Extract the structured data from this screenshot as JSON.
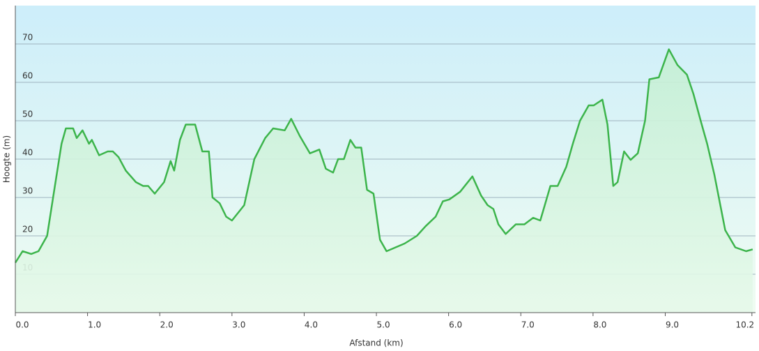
{
  "chart_data": {
    "type": "area",
    "xlabel": "Afstand  (km)",
    "ylabel": "Hoogte (m)",
    "x": [
      0,
      0.1,
      0.22,
      0.32,
      0.44,
      0.54,
      0.64,
      0.7,
      0.8,
      0.85,
      0.93,
      1.02,
      1.06,
      1.16,
      1.28,
      1.35,
      1.43,
      1.53,
      1.67,
      1.77,
      1.84,
      1.93,
      2.06,
      2.15,
      2.2,
      2.28,
      2.36,
      2.49,
      2.59,
      2.68,
      2.73,
      2.83,
      2.92,
      3.0,
      3.17,
      3.31,
      3.46,
      3.57,
      3.73,
      3.82,
      3.94,
      4.08,
      4.21,
      4.3,
      4.4,
      4.47,
      4.55,
      4.64,
      4.71,
      4.79,
      4.87,
      4.96,
      5.05,
      5.14,
      5.39,
      5.56,
      5.68,
      5.82,
      5.92,
      6.01,
      6.16,
      6.33,
      6.45,
      6.54,
      6.62,
      6.69,
      6.79,
      6.93,
      7.05,
      7.17,
      7.27,
      7.41,
      7.51,
      7.63,
      7.72,
      7.82,
      7.94,
      8.01,
      8.13,
      8.2,
      8.28,
      8.34,
      8.43,
      8.52,
      8.62,
      8.72,
      8.78,
      8.91,
      9.05,
      9.17,
      9.3,
      9.39,
      9.49,
      9.58,
      9.68,
      9.83,
      9.97,
      10.12,
      10.21
    ],
    "series": [
      {
        "color": "#3cb44b",
        "values": [
          13,
          16,
          15.3,
          16,
          20,
          32,
          44,
          48,
          48,
          45.5,
          47.5,
          44,
          45,
          41,
          42,
          42,
          40.5,
          37,
          34,
          33,
          33,
          31,
          34,
          39.5,
          37,
          45,
          49,
          49,
          42,
          42,
          30,
          28.5,
          25,
          24,
          28,
          40,
          45.5,
          48,
          47.5,
          50.5,
          46,
          41.5,
          42.5,
          37.5,
          36.5,
          40,
          40,
          45,
          43,
          43,
          32,
          31,
          19,
          16,
          18,
          20,
          22.5,
          25,
          29,
          29.5,
          31.5,
          35.5,
          30.5,
          28,
          27,
          23,
          20.5,
          23,
          23,
          24.7,
          24,
          33,
          33,
          38,
          44,
          50,
          54,
          54,
          55.5,
          49,
          33,
          34,
          42,
          39.8,
          41.5,
          50,
          60.8,
          61.3,
          68.6,
          64.5,
          62,
          57,
          50,
          44,
          36,
          21.5,
          17,
          16,
          16.5
        ]
      }
    ],
    "xlim": [
      0,
      10.25
    ],
    "xticks": [
      {
        "value": 0,
        "label": "0.0"
      },
      {
        "value": 1,
        "label": "1.0"
      },
      {
        "value": 2,
        "label": "2.0"
      },
      {
        "value": 3,
        "label": "3.0"
      },
      {
        "value": 4,
        "label": "4.0"
      },
      {
        "value": 5,
        "label": "5.0"
      },
      {
        "value": 6,
        "label": "6.0"
      },
      {
        "value": 7,
        "label": "7.0"
      },
      {
        "value": 8,
        "label": "8.0"
      },
      {
        "value": 9,
        "label": "9.0"
      },
      10.2
    ],
    "ylim": [
      0,
      80
    ],
    "yticks": [
      10,
      20,
      30,
      40,
      50,
      60,
      70
    ],
    "grid": true
  }
}
